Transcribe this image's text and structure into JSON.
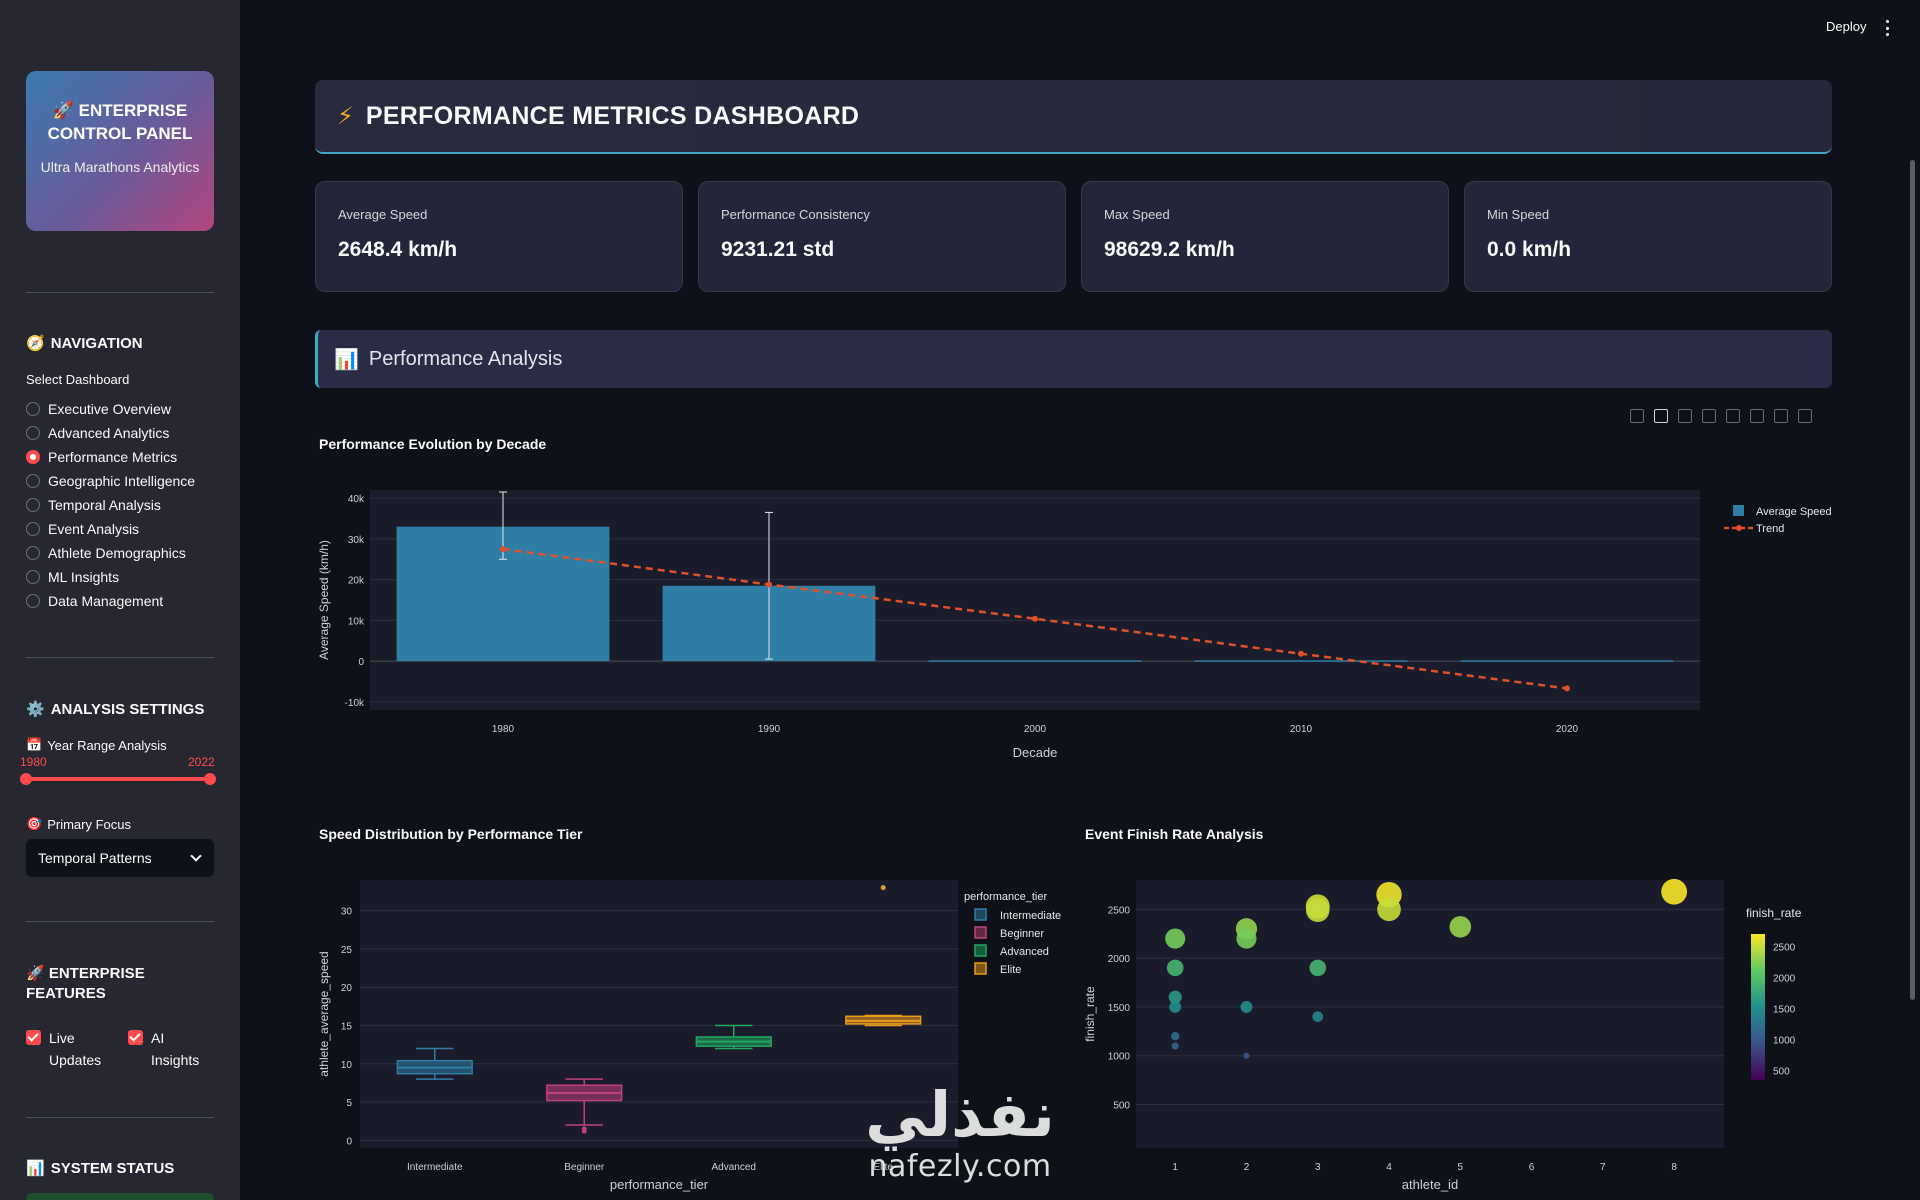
{
  "sidebar": {
    "brand_title": "🚀 ENTERPRISE CONTROL PANEL",
    "brand_sub": "Ultra Marathons Analytics",
    "navigation_title": "NAVIGATION",
    "select_label": "Select Dashboard",
    "nav_items": [
      {
        "label": "Executive Overview",
        "selected": false
      },
      {
        "label": "Advanced Analytics",
        "selected": false
      },
      {
        "label": "Performance Metrics",
        "selected": true
      },
      {
        "label": "Geographic Intelligence",
        "selected": false
      },
      {
        "label": "Temporal Analysis",
        "selected": false
      },
      {
        "label": "Event Analysis",
        "selected": false
      },
      {
        "label": "Athlete Demographics",
        "selected": false
      },
      {
        "label": "ML Insights",
        "selected": false
      },
      {
        "label": "Data Management",
        "selected": false
      }
    ],
    "analysis_title": "ANALYSIS SETTINGS",
    "year_range_label": "Year Range Analysis",
    "year_min": "1980",
    "year_max": "2022",
    "focus_label": "Primary Focus",
    "focus_value": "Temporal Patterns",
    "features_title": "🚀 ENTERPRISE FEATURES",
    "checkbox_live": "Live Updates",
    "checkbox_ai": "AI Insights",
    "status_title": "SYSTEM STATUS",
    "accent_color": "#ff4b4b"
  },
  "topbar": {
    "deploy": "Deploy"
  },
  "header": {
    "title": "PERFORMANCE METRICS DASHBOARD",
    "icon": "bolt-icon"
  },
  "metrics": [
    {
      "label": "Average Speed",
      "value": "2648.4 km/h"
    },
    {
      "label": "Performance Consistency",
      "value": "9231.21 std"
    },
    {
      "label": "Max Speed",
      "value": "98629.2 km/h"
    },
    {
      "label": "Min Speed",
      "value": "0.0 km/h"
    }
  ],
  "section": {
    "title": "Performance Analysis",
    "icon": "bar-chart-icon"
  },
  "chart_data": [
    {
      "type": "bar",
      "title": "Performance Evolution by Decade",
      "xlabel": "Decade",
      "ylabel": "Average Speed (km/h)",
      "categories": [
        "1980",
        "1990",
        "2000",
        "2010",
        "2020"
      ],
      "ylim": [
        -12000,
        42000
      ],
      "yticks": [
        {
          "v": 40000,
          "t": "40k"
        },
        {
          "v": 30000,
          "t": "30k"
        },
        {
          "v": 20000,
          "t": "20k"
        },
        {
          "v": 10000,
          "t": "10k"
        },
        {
          "v": 0,
          "t": "0"
        },
        {
          "v": -10000,
          "t": "-10k"
        }
      ],
      "series": [
        {
          "name": "Average Speed",
          "values": [
            33000,
            18500,
            200,
            200,
            200
          ],
          "error_low": [
            25000,
            500,
            200,
            200,
            200
          ],
          "error_high": [
            41500,
            36500,
            200,
            200,
            200
          ],
          "color": "#2e7ea6"
        },
        {
          "name": "Trend",
          "values": [
            27500,
            18800,
            10400,
            1800,
            -6700
          ],
          "color": "#e0502a"
        }
      ],
      "grid": true,
      "legend": "top-right"
    },
    {
      "type": "box",
      "title": "Speed Distribution by Performance Tier",
      "xlabel": "performance_tier",
      "ylabel": "athlete_average_speed",
      "legend_title": "performance_tier",
      "ylim": [
        -1,
        34
      ],
      "yticks": [
        0,
        5,
        10,
        15,
        20,
        25,
        30
      ],
      "categories": [
        "Intermediate",
        "Beginner",
        "Advanced",
        "Elite"
      ],
      "boxes": [
        {
          "name": "Intermediate",
          "min": 8,
          "q1": 8.7,
          "median": 9.5,
          "q3": 10.4,
          "max": 12,
          "outliers": [],
          "color": "#2e7ea6"
        },
        {
          "name": "Beginner",
          "min": 2,
          "q1": 5.2,
          "median": 6.2,
          "q3": 7.2,
          "max": 8,
          "outliers": [
            1.2,
            1.5
          ],
          "color": "#c0407e"
        },
        {
          "name": "Advanced",
          "min": 12,
          "q1": 12.3,
          "median": 12.9,
          "q3": 13.5,
          "max": 15,
          "outliers": [],
          "color": "#1fa860"
        },
        {
          "name": "Elite",
          "min": 15,
          "q1": 15.2,
          "median": 15.6,
          "q3": 16.2,
          "max": 16.3,
          "outliers": [
            33
          ],
          "color": "#ea9a1c"
        }
      ],
      "legend": "top-right"
    },
    {
      "type": "scatter",
      "title": "Event Finish Rate Analysis",
      "xlabel": "athlete_id",
      "ylabel": "finish_rate",
      "colorbar_title": "finish_rate",
      "xlim": [
        0.45,
        8.7
      ],
      "ylim": [
        55,
        2800
      ],
      "xticks": [
        1,
        2,
        3,
        4,
        5,
        6,
        7,
        8
      ],
      "yticks": [
        500,
        1000,
        1500,
        2000,
        2500
      ],
      "colorbar_ticks": [
        500,
        1000,
        1500,
        2000,
        2500
      ],
      "points": [
        {
          "x": 1,
          "y": 2200
        },
        {
          "x": 1,
          "y": 1900
        },
        {
          "x": 1,
          "y": 1600
        },
        {
          "x": 1,
          "y": 1500
        },
        {
          "x": 1,
          "y": 1200
        },
        {
          "x": 1,
          "y": 1100
        },
        {
          "x": 2,
          "y": 2300
        },
        {
          "x": 2,
          "y": 2200
        },
        {
          "x": 2,
          "y": 1500
        },
        {
          "x": 2,
          "y": 1000
        },
        {
          "x": 3,
          "y": 2530
        },
        {
          "x": 3,
          "y": 2490
        },
        {
          "x": 3,
          "y": 1900
        },
        {
          "x": 3,
          "y": 1400
        },
        {
          "x": 4,
          "y": 2650
        },
        {
          "x": 4,
          "y": 2500
        },
        {
          "x": 5,
          "y": 2320
        },
        {
          "x": 8,
          "y": 2680
        }
      ],
      "colorscale": [
        "#440154",
        "#3b528b",
        "#21918c",
        "#5ec962",
        "#fde725"
      ],
      "clim": [
        350,
        2700
      ]
    }
  ],
  "watermark": {
    "arabic": "نفذلي",
    "latin": "nafezly.com"
  }
}
